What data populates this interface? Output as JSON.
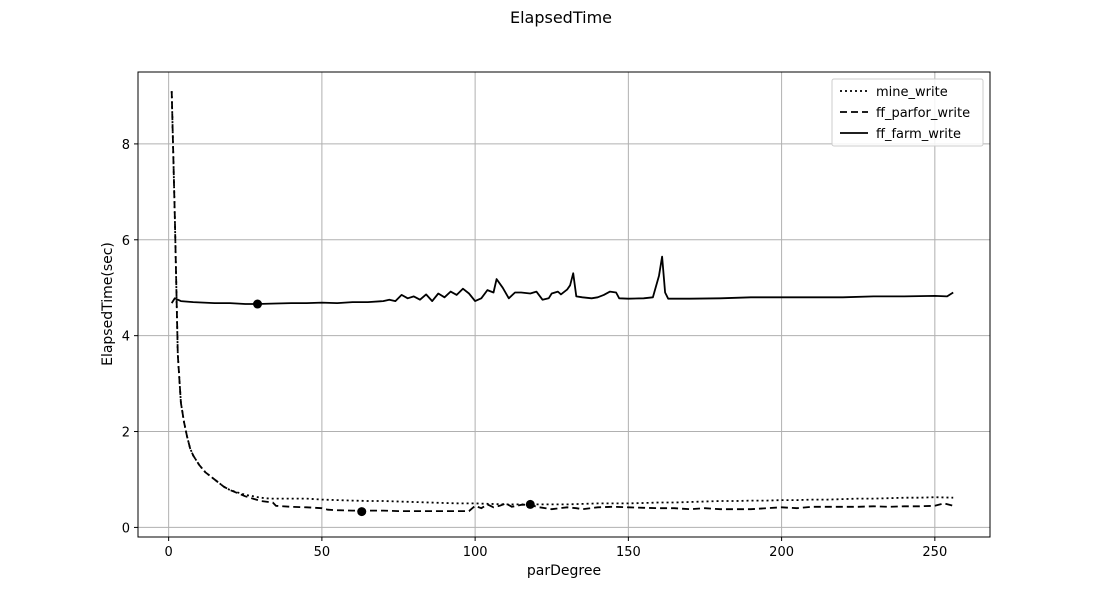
{
  "chart_data": {
    "type": "line",
    "title": "ElapsedTime",
    "xlabel": "parDegree",
    "ylabel": "ElapsedTime(sec)",
    "xlim": [
      -10,
      268
    ],
    "ylim": [
      -0.2,
      9.5
    ],
    "xticks": [
      0,
      50,
      100,
      150,
      200,
      250
    ],
    "yticks": [
      0,
      2,
      4,
      6,
      8
    ],
    "grid": true,
    "legend_position": "top-right",
    "series": [
      {
        "name": "mine_write",
        "style": "dotted",
        "color": "#000000",
        "points": [
          [
            1,
            9.1
          ],
          [
            2,
            6.5
          ],
          [
            3,
            3.6
          ],
          [
            4,
            2.6
          ],
          [
            5,
            2.2
          ],
          [
            6,
            1.9
          ],
          [
            7,
            1.65
          ],
          [
            8,
            1.5
          ],
          [
            10,
            1.3
          ],
          [
            12,
            1.15
          ],
          [
            15,
            1.0
          ],
          [
            18,
            0.85
          ],
          [
            20,
            0.78
          ],
          [
            25,
            0.68
          ],
          [
            30,
            0.62
          ],
          [
            33,
            0.6
          ],
          [
            35,
            0.6
          ],
          [
            40,
            0.6
          ],
          [
            45,
            0.6
          ],
          [
            50,
            0.58
          ],
          [
            55,
            0.57
          ],
          [
            60,
            0.56
          ],
          [
            65,
            0.55
          ],
          [
            70,
            0.55
          ],
          [
            75,
            0.54
          ],
          [
            80,
            0.53
          ],
          [
            85,
            0.52
          ],
          [
            90,
            0.51
          ],
          [
            95,
            0.5
          ],
          [
            100,
            0.5
          ],
          [
            105,
            0.49
          ],
          [
            110,
            0.48
          ],
          [
            115,
            0.48
          ],
          [
            120,
            0.48
          ],
          [
            125,
            0.48
          ],
          [
            130,
            0.48
          ],
          [
            135,
            0.49
          ],
          [
            140,
            0.5
          ],
          [
            145,
            0.5
          ],
          [
            150,
            0.5
          ],
          [
            155,
            0.51
          ],
          [
            160,
            0.52
          ],
          [
            165,
            0.52
          ],
          [
            170,
            0.53
          ],
          [
            175,
            0.54
          ],
          [
            180,
            0.55
          ],
          [
            185,
            0.55
          ],
          [
            190,
            0.56
          ],
          [
            195,
            0.56
          ],
          [
            200,
            0.57
          ],
          [
            205,
            0.57
          ],
          [
            210,
            0.58
          ],
          [
            215,
            0.58
          ],
          [
            220,
            0.59
          ],
          [
            225,
            0.6
          ],
          [
            230,
            0.6
          ],
          [
            235,
            0.61
          ],
          [
            240,
            0.62
          ],
          [
            245,
            0.62
          ],
          [
            250,
            0.63
          ],
          [
            256,
            0.62
          ]
        ]
      },
      {
        "name": "ff_parfor_write",
        "style": "dashed",
        "color": "#000000",
        "points": [
          [
            1,
            9.1
          ],
          [
            2,
            6.5
          ],
          [
            3,
            3.6
          ],
          [
            4,
            2.6
          ],
          [
            5,
            2.2
          ],
          [
            6,
            1.9
          ],
          [
            7,
            1.65
          ],
          [
            8,
            1.5
          ],
          [
            10,
            1.3
          ],
          [
            12,
            1.15
          ],
          [
            15,
            1.0
          ],
          [
            18,
            0.85
          ],
          [
            20,
            0.78
          ],
          [
            25,
            0.65
          ],
          [
            30,
            0.55
          ],
          [
            34,
            0.52
          ],
          [
            35,
            0.45
          ],
          [
            40,
            0.43
          ],
          [
            45,
            0.42
          ],
          [
            50,
            0.4
          ],
          [
            52,
            0.37
          ],
          [
            55,
            0.36
          ],
          [
            60,
            0.35
          ],
          [
            63,
            0.35
          ],
          [
            70,
            0.35
          ],
          [
            75,
            0.34
          ],
          [
            80,
            0.34
          ],
          [
            85,
            0.34
          ],
          [
            90,
            0.34
          ],
          [
            95,
            0.34
          ],
          [
            98,
            0.34
          ],
          [
            100,
            0.45
          ],
          [
            102,
            0.4
          ],
          [
            104,
            0.48
          ],
          [
            106,
            0.42
          ],
          [
            108,
            0.45
          ],
          [
            110,
            0.5
          ],
          [
            112,
            0.43
          ],
          [
            115,
            0.47
          ],
          [
            118,
            0.48
          ],
          [
            120,
            0.43
          ],
          [
            125,
            0.38
          ],
          [
            130,
            0.42
          ],
          [
            133,
            0.4
          ],
          [
            135,
            0.38
          ],
          [
            140,
            0.42
          ],
          [
            145,
            0.43
          ],
          [
            150,
            0.42
          ],
          [
            155,
            0.41
          ],
          [
            160,
            0.4
          ],
          [
            165,
            0.4
          ],
          [
            170,
            0.38
          ],
          [
            175,
            0.4
          ],
          [
            180,
            0.38
          ],
          [
            185,
            0.38
          ],
          [
            190,
            0.38
          ],
          [
            195,
            0.4
          ],
          [
            200,
            0.42
          ],
          [
            205,
            0.4
          ],
          [
            210,
            0.43
          ],
          [
            215,
            0.43
          ],
          [
            220,
            0.43
          ],
          [
            225,
            0.43
          ],
          [
            230,
            0.44
          ],
          [
            235,
            0.43
          ],
          [
            240,
            0.44
          ],
          [
            245,
            0.44
          ],
          [
            250,
            0.45
          ],
          [
            253,
            0.5
          ],
          [
            256,
            0.45
          ]
        ]
      },
      {
        "name": "ff_farm_write",
        "style": "solid",
        "color": "#000000",
        "points": [
          [
            1,
            4.68
          ],
          [
            2,
            4.78
          ],
          [
            4,
            4.72
          ],
          [
            8,
            4.7
          ],
          [
            15,
            4.68
          ],
          [
            20,
            4.68
          ],
          [
            25,
            4.66
          ],
          [
            29,
            4.66
          ],
          [
            35,
            4.67
          ],
          [
            40,
            4.68
          ],
          [
            45,
            4.68
          ],
          [
            50,
            4.69
          ],
          [
            55,
            4.68
          ],
          [
            60,
            4.7
          ],
          [
            65,
            4.7
          ],
          [
            70,
            4.72
          ],
          [
            72,
            4.75
          ],
          [
            74,
            4.72
          ],
          [
            76,
            4.85
          ],
          [
            78,
            4.78
          ],
          [
            80,
            4.82
          ],
          [
            82,
            4.75
          ],
          [
            84,
            4.86
          ],
          [
            86,
            4.72
          ],
          [
            88,
            4.88
          ],
          [
            90,
            4.8
          ],
          [
            92,
            4.92
          ],
          [
            94,
            4.85
          ],
          [
            96,
            4.98
          ],
          [
            98,
            4.88
          ],
          [
            100,
            4.72
          ],
          [
            102,
            4.78
          ],
          [
            104,
            4.95
          ],
          [
            106,
            4.9
          ],
          [
            107,
            5.18
          ],
          [
            109,
            5.0
          ],
          [
            111,
            4.78
          ],
          [
            113,
            4.9
          ],
          [
            115,
            4.9
          ],
          [
            118,
            4.88
          ],
          [
            120,
            4.92
          ],
          [
            122,
            4.75
          ],
          [
            124,
            4.78
          ],
          [
            125,
            4.88
          ],
          [
            127,
            4.92
          ],
          [
            128,
            4.86
          ],
          [
            130,
            4.96
          ],
          [
            131,
            5.05
          ],
          [
            132,
            5.3
          ],
          [
            133,
            4.82
          ],
          [
            135,
            4.8
          ],
          [
            138,
            4.78
          ],
          [
            140,
            4.8
          ],
          [
            142,
            4.85
          ],
          [
            144,
            4.92
          ],
          [
            146,
            4.9
          ],
          [
            147,
            4.78
          ],
          [
            150,
            4.77
          ],
          [
            155,
            4.78
          ],
          [
            158,
            4.8
          ],
          [
            160,
            5.25
          ],
          [
            161,
            5.65
          ],
          [
            162,
            4.9
          ],
          [
            163,
            4.77
          ],
          [
            170,
            4.77
          ],
          [
            180,
            4.78
          ],
          [
            190,
            4.8
          ],
          [
            200,
            4.8
          ],
          [
            210,
            4.8
          ],
          [
            220,
            4.8
          ],
          [
            230,
            4.82
          ],
          [
            240,
            4.82
          ],
          [
            250,
            4.83
          ],
          [
            254,
            4.82
          ],
          [
            256,
            4.9
          ]
        ]
      }
    ],
    "markers": [
      {
        "x": 29,
        "y": 4.66
      },
      {
        "x": 63,
        "y": 0.33
      },
      {
        "x": 118,
        "y": 0.48
      }
    ]
  }
}
